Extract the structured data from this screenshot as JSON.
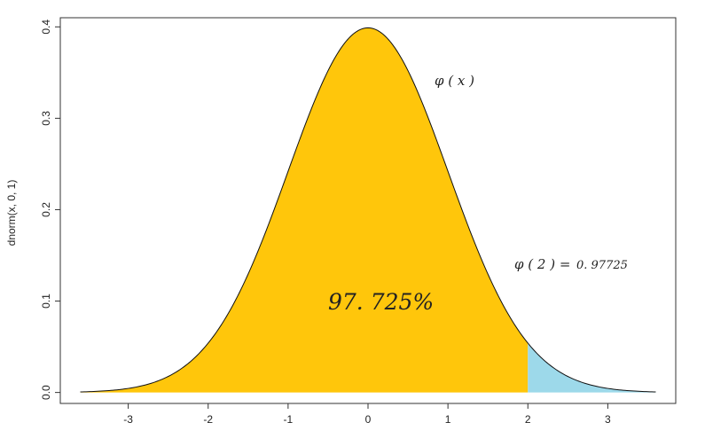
{
  "chart_data": {
    "type": "area",
    "title": "",
    "xlabel": "",
    "ylabel": "dnorm(x, 0, 1)",
    "function": "standard normal density",
    "mean": 0,
    "sd": 1,
    "x_range": [
      -3.6,
      3.6
    ],
    "xlim": [
      -3.85,
      3.85
    ],
    "ylim": [
      -0.012,
      0.41
    ],
    "x_ticks": [
      -3,
      -2,
      -1,
      0,
      1,
      2,
      3
    ],
    "x_tick_labels": [
      "-3",
      "-2",
      "-1",
      "0",
      "1",
      "2",
      "3"
    ],
    "y_ticks": [
      0.0,
      0.1,
      0.2,
      0.3,
      0.4
    ],
    "y_tick_labels": [
      "0.0",
      "0.1",
      "0.2",
      "0.3",
      "0.4"
    ],
    "cutoff_x": 2,
    "regions": [
      {
        "name": "x ≤ 2",
        "from": -3.6,
        "to": 2,
        "color": "#FFC60B"
      },
      {
        "name": "x > 2",
        "from": 2,
        "to": 3.6,
        "color": "#9DD9EA"
      }
    ],
    "grid": false,
    "annotations": {
      "curve_label": "φ ( x )",
      "cdf_label": "φ ( 2 ) =",
      "cdf_value": "0. 97725",
      "area_percent": "97. 725%"
    }
  }
}
